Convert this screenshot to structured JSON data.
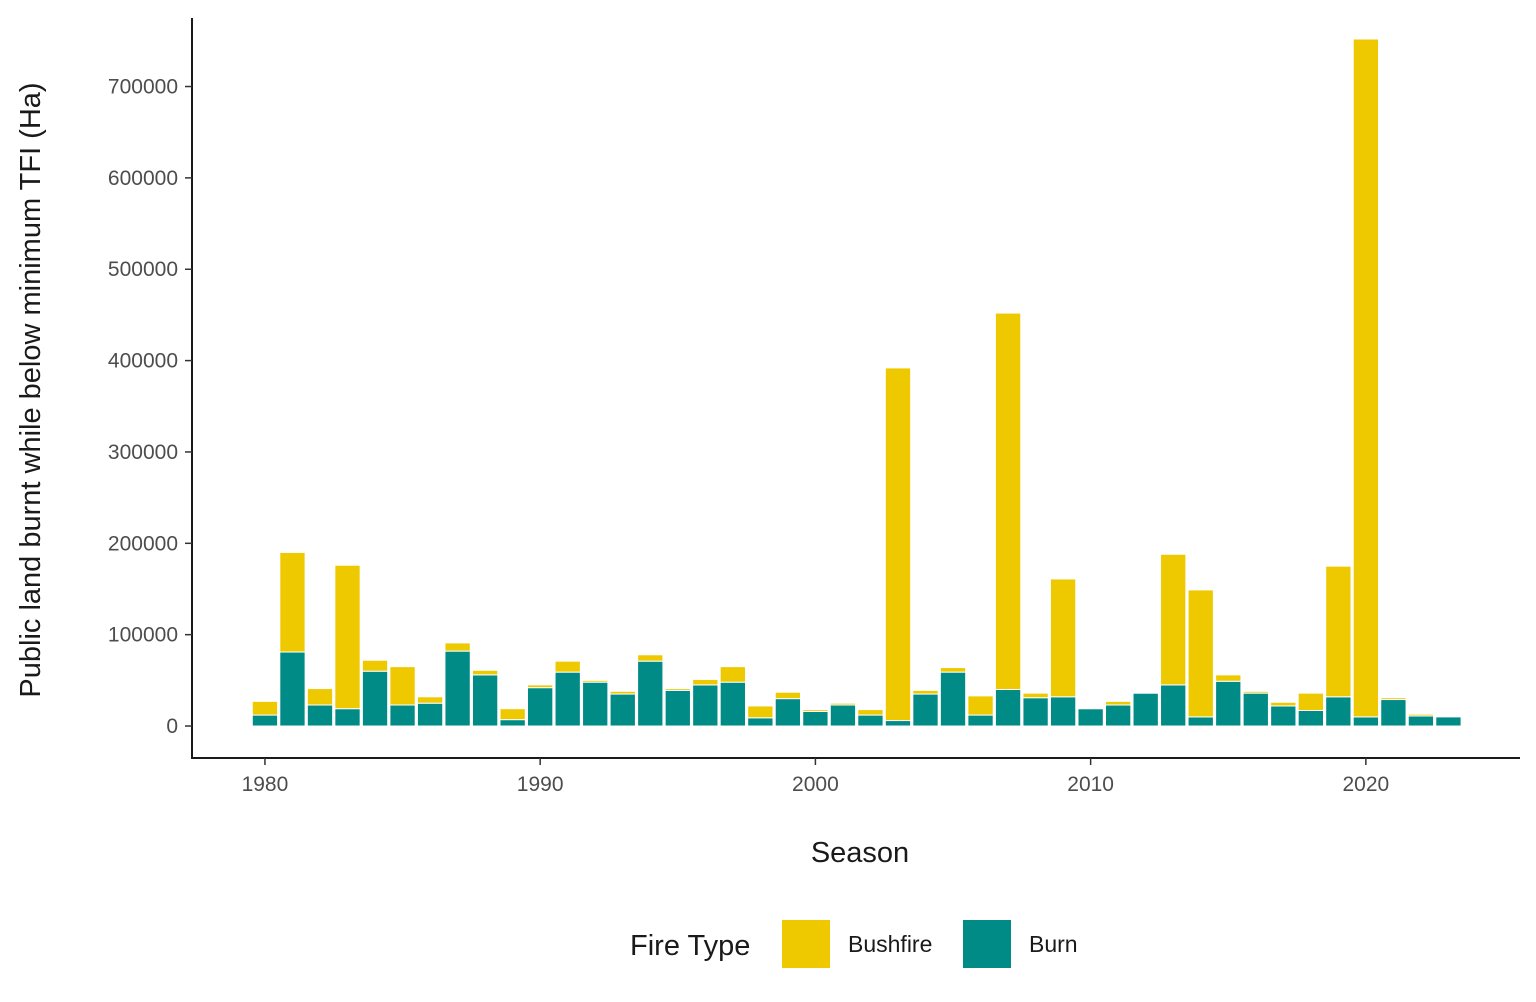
{
  "chart_data": {
    "type": "bar",
    "stacked": true,
    "xlabel": "Season",
    "ylabel": "Public land burnt while below minimum TFI (Ha)",
    "x": [
      1980,
      1981,
      1982,
      1983,
      1984,
      1985,
      1986,
      1987,
      1988,
      1989,
      1990,
      1991,
      1992,
      1993,
      1994,
      1995,
      1996,
      1997,
      1998,
      1999,
      2000,
      2001,
      2002,
      2003,
      2004,
      2005,
      2006,
      2007,
      2008,
      2009,
      2010,
      2011,
      2012,
      2013,
      2014,
      2015,
      2016,
      2017,
      2018,
      2019,
      2020,
      2021,
      2022,
      2023
    ],
    "series": [
      {
        "name": "Burn",
        "color": "#008b87",
        "values": [
          12000,
          81000,
          23000,
          19000,
          60000,
          23000,
          25000,
          82000,
          56000,
          7000,
          42000,
          59000,
          48000,
          35000,
          71000,
          39000,
          45000,
          48000,
          9000,
          30000,
          16000,
          23000,
          12000,
          6000,
          35000,
          59000,
          12000,
          40000,
          31000,
          32000,
          19000,
          23000,
          36000,
          45000,
          10000,
          49000,
          36000,
          22000,
          17000,
          32000,
          10000,
          29000,
          11000,
          10000
        ]
      },
      {
        "name": "Bushfire",
        "color": "#eec900",
        "values": [
          15000,
          109000,
          18000,
          157000,
          12000,
          42000,
          7000,
          9000,
          5000,
          12000,
          3000,
          12000,
          2000,
          3000,
          7000,
          2000,
          6000,
          17000,
          13000,
          7000,
          2000,
          2000,
          6000,
          386000,
          4000,
          5000,
          21000,
          412000,
          5000,
          129000,
          1000,
          4000,
          1000,
          143000,
          139000,
          7000,
          2000,
          4000,
          19000,
          143000,
          742000,
          2000,
          2000,
          0
        ]
      }
    ],
    "yticks": [
      0,
      100000,
      200000,
      300000,
      400000,
      500000,
      600000,
      700000
    ],
    "xticks": [
      1980,
      1990,
      2000,
      2010,
      2020
    ],
    "ylim": [
      -35000,
      775000
    ],
    "xlim": [
      1977.35,
      2025.6
    ],
    "grid": false,
    "legend": {
      "title": "Fire Type",
      "position": "bottom",
      "entries": [
        "Bushfire",
        "Burn"
      ]
    }
  }
}
